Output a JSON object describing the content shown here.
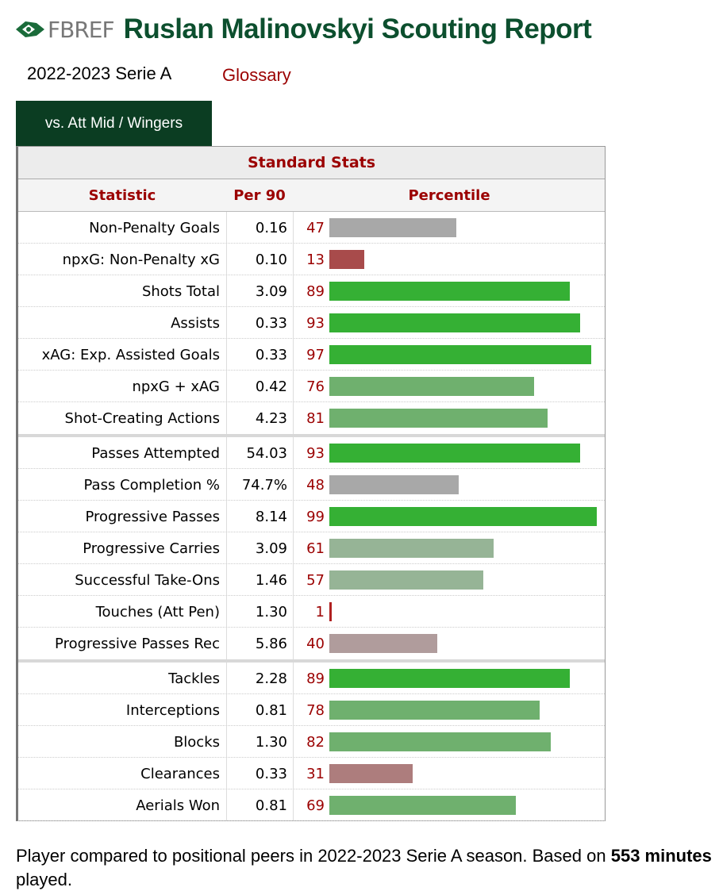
{
  "header": {
    "logo_text": "FBREF",
    "title": "Ruslan Malinovskyi Scouting Report"
  },
  "season_label": "2022-2023 Serie A",
  "glossary_label": "Glossary",
  "tab_label": "vs. Att Mid / Wingers",
  "table": {
    "caption": "Standard Stats",
    "headers": {
      "statistic": "Statistic",
      "per90": "Per 90",
      "percentile": "Percentile"
    }
  },
  "chart_data": {
    "type": "bar",
    "title": "Standard Stats",
    "xlim": [
      0,
      100
    ],
    "columns": [
      "Statistic",
      "Per 90",
      "Percentile"
    ],
    "groups": [
      [
        {
          "stat": "Non-Penalty Goals",
          "per90": "0.16",
          "percentile": 47
        },
        {
          "stat": "npxG: Non-Penalty xG",
          "per90": "0.10",
          "percentile": 13
        },
        {
          "stat": "Shots Total",
          "per90": "3.09",
          "percentile": 89
        },
        {
          "stat": "Assists",
          "per90": "0.33",
          "percentile": 93
        },
        {
          "stat": "xAG: Exp. Assisted Goals",
          "per90": "0.33",
          "percentile": 97
        },
        {
          "stat": "npxG + xAG",
          "per90": "0.42",
          "percentile": 76
        },
        {
          "stat": "Shot-Creating Actions",
          "per90": "4.23",
          "percentile": 81
        }
      ],
      [
        {
          "stat": "Passes Attempted",
          "per90": "54.03",
          "percentile": 93
        },
        {
          "stat": "Pass Completion %",
          "per90": "74.7%",
          "percentile": 48
        },
        {
          "stat": "Progressive Passes",
          "per90": "8.14",
          "percentile": 99
        },
        {
          "stat": "Progressive Carries",
          "per90": "3.09",
          "percentile": 61
        },
        {
          "stat": "Successful Take-Ons",
          "per90": "1.46",
          "percentile": 57
        },
        {
          "stat": "Touches (Att Pen)",
          "per90": "1.30",
          "percentile": 1
        },
        {
          "stat": "Progressive Passes Rec",
          "per90": "5.86",
          "percentile": 40
        }
      ],
      [
        {
          "stat": "Tackles",
          "per90": "2.28",
          "percentile": 89
        },
        {
          "stat": "Interceptions",
          "per90": "0.81",
          "percentile": 78
        },
        {
          "stat": "Blocks",
          "per90": "1.30",
          "percentile": 82
        },
        {
          "stat": "Clearances",
          "per90": "0.33",
          "percentile": 31
        },
        {
          "stat": "Aerials Won",
          "per90": "0.81",
          "percentile": 69
        }
      ]
    ],
    "color_scale": {
      "low": "#a84b4b",
      "mid_low": "#b09c9c",
      "mid": "#a8a8a8",
      "mid_high": "#96b496",
      "high": "#35b034"
    }
  },
  "footnote": {
    "text_before": "Player compared to positional peers in 2022-2023 Serie A season. Based on ",
    "minutes": "553 minutes",
    "text_after": " played."
  },
  "colors": {
    "brand_green": "#0c4f2e",
    "tab_bg": "#0b3d22",
    "accent_red": "#9b0000"
  }
}
